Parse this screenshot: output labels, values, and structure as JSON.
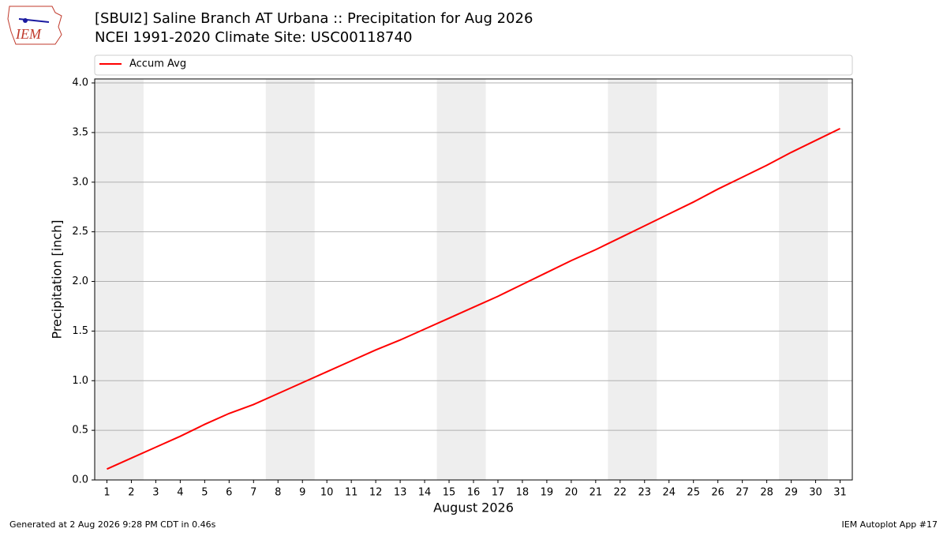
{
  "logo_text": "IEM",
  "footer_left": "Generated at 2 Aug 2026 9:28 PM CDT in 0.46s",
  "footer_right": "IEM Autoplot App #17",
  "chart_data": {
    "type": "line",
    "title": "[SBUI2] Saline Branch  AT Urbana :: Precipitation for Aug 2026",
    "subtitle": "NCEI 1991-2020 Climate Site: USC00118740",
    "x_label": "August 2026",
    "y_label": "Precipitation [inch]",
    "x": [
      1,
      2,
      3,
      4,
      5,
      6,
      7,
      8,
      9,
      10,
      11,
      12,
      13,
      14,
      15,
      16,
      17,
      18,
      19,
      20,
      21,
      22,
      23,
      24,
      25,
      26,
      27,
      28,
      29,
      30,
      31
    ],
    "series": [
      {
        "name": "Accum Avg",
        "color": "#ff0000",
        "values": [
          0.11,
          0.22,
          0.33,
          0.44,
          0.56,
          0.67,
          0.76,
          0.87,
          0.98,
          1.09,
          1.2,
          1.31,
          1.41,
          1.52,
          1.63,
          1.74,
          1.85,
          1.97,
          2.09,
          2.21,
          2.32,
          2.44,
          2.56,
          2.68,
          2.8,
          2.93,
          3.05,
          3.17,
          3.3,
          3.42,
          3.54
        ]
      }
    ],
    "xlim": [
      0.5,
      31.5
    ],
    "xticks": [
      1,
      2,
      3,
      4,
      5,
      6,
      7,
      8,
      9,
      10,
      11,
      12,
      13,
      14,
      15,
      16,
      17,
      18,
      19,
      20,
      21,
      22,
      23,
      24,
      25,
      26,
      27,
      28,
      29,
      30,
      31
    ],
    "ylim": [
      0,
      4.04
    ],
    "yticks": [
      {
        "value": 0,
        "label": "0.0"
      },
      0.5,
      {
        "value": 1,
        "label": "1.0"
      },
      1.5,
      {
        "value": 2,
        "label": "2.0"
      },
      2.5,
      {
        "value": 3,
        "label": "3.0"
      },
      3.5,
      {
        "value": 4,
        "label": "4.0"
      }
    ],
    "weekend_spans": [
      [
        0.5,
        2.5
      ],
      [
        7.5,
        9.5
      ],
      [
        14.5,
        16.5
      ],
      [
        21.5,
        23.5
      ],
      [
        28.5,
        30.5
      ]
    ],
    "weekend_color": "#eeeeee",
    "grid": true,
    "legend": "top"
  }
}
